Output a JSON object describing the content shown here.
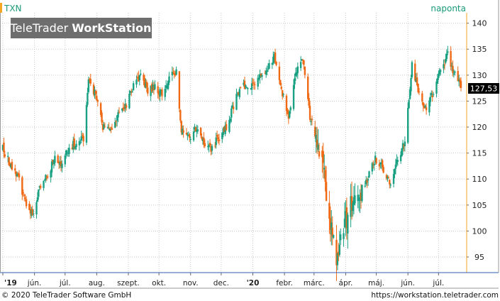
{
  "header": {
    "symbol": "TXN",
    "period": "naponta",
    "logo_regular": "TeleTrader ",
    "logo_bold": "WorkStation"
  },
  "footer": {
    "copyright": "© 2020 TeleTrader Software GmbH",
    "url": "https://workstation.teletrader.com"
  },
  "last_price": "127,53",
  "colors": {
    "up": "#1aa082",
    "down": "#f06a16",
    "grid": "#c8c8c8",
    "frame": "#9a9a9a",
    "price_tag": "#000000",
    "logo_bg": "#6e6e6e",
    "accent": "#f5a623"
  },
  "chart_data": {
    "type": "candlestick",
    "ylim": [
      92,
      142
    ],
    "y_ticks": [
      95,
      100,
      105,
      110,
      115,
      120,
      125,
      130,
      135,
      140
    ],
    "x_labels": [
      "'19",
      "jún.",
      "júl.",
      "aug.",
      "szept.",
      "okt.",
      "nov.",
      "dec.",
      "'20",
      "febr.",
      "márc.",
      "ápr.",
      "máj.",
      "jún.",
      "júl."
    ],
    "x_bold": [
      "'19",
      "'20"
    ],
    "x_label_dates": [
      "2019-05-01",
      "2019-06-01",
      "2019-07-01",
      "2019-08-01",
      "2019-09-01",
      "2019-10-01",
      "2019-11-01",
      "2019-12-01",
      "2020-01-01",
      "2020-02-01",
      "2020-03-01",
      "2020-04-01",
      "2020-05-01",
      "2020-06-01",
      "2020-07-01"
    ],
    "close_path": [
      [
        "2019-05-01",
        116
      ],
      [
        "2019-05-08",
        113
      ],
      [
        "2019-05-15",
        111
      ],
      [
        "2019-05-22",
        106
      ],
      [
        "2019-05-31",
        103
      ],
      [
        "2019-06-07",
        109
      ],
      [
        "2019-06-14",
        111
      ],
      [
        "2019-06-21",
        114
      ],
      [
        "2019-06-28",
        113
      ],
      [
        "2019-07-05",
        116
      ],
      [
        "2019-07-12",
        117
      ],
      [
        "2019-07-19",
        118
      ],
      [
        "2019-07-24",
        129
      ],
      [
        "2019-07-31",
        126
      ],
      [
        "2019-08-07",
        120
      ],
      [
        "2019-08-14",
        119
      ],
      [
        "2019-08-21",
        122
      ],
      [
        "2019-08-30",
        124
      ],
      [
        "2019-09-06",
        128
      ],
      [
        "2019-09-13",
        130
      ],
      [
        "2019-09-20",
        127
      ],
      [
        "2019-09-27",
        128
      ],
      [
        "2019-10-04",
        126
      ],
      [
        "2019-10-11",
        129
      ],
      [
        "2019-10-18",
        131
      ],
      [
        "2019-10-23",
        119
      ],
      [
        "2019-10-31",
        118
      ],
      [
        "2019-11-07",
        120
      ],
      [
        "2019-11-14",
        117
      ],
      [
        "2019-11-21",
        116
      ],
      [
        "2019-11-29",
        118
      ],
      [
        "2019-12-06",
        120
      ],
      [
        "2019-12-13",
        124
      ],
      [
        "2019-12-20",
        128
      ],
      [
        "2019-12-31",
        128
      ],
      [
        "2020-01-08",
        130
      ],
      [
        "2020-01-15",
        131
      ],
      [
        "2020-01-22",
        134
      ],
      [
        "2020-01-29",
        127
      ],
      [
        "2020-02-05",
        122
      ],
      [
        "2020-02-12",
        131
      ],
      [
        "2020-02-19",
        133
      ],
      [
        "2020-02-26",
        122
      ],
      [
        "2020-03-04",
        118
      ],
      [
        "2020-03-11",
        110
      ],
      [
        "2020-03-18",
        100
      ],
      [
        "2020-03-23",
        95
      ],
      [
        "2020-03-31",
        101
      ],
      [
        "2020-04-08",
        106
      ],
      [
        "2020-04-15",
        108
      ],
      [
        "2020-04-22",
        110
      ],
      [
        "2020-04-30",
        114
      ],
      [
        "2020-05-08",
        112
      ],
      [
        "2020-05-15",
        109
      ],
      [
        "2020-05-22",
        114
      ],
      [
        "2020-05-29",
        117
      ],
      [
        "2020-06-05",
        132
      ],
      [
        "2020-06-12",
        126
      ],
      [
        "2020-06-19",
        123
      ],
      [
        "2020-06-26",
        127
      ],
      [
        "2020-07-03",
        131
      ],
      [
        "2020-07-10",
        134
      ],
      [
        "2020-07-17",
        130
      ],
      [
        "2020-07-23",
        127.53
      ]
    ]
  }
}
